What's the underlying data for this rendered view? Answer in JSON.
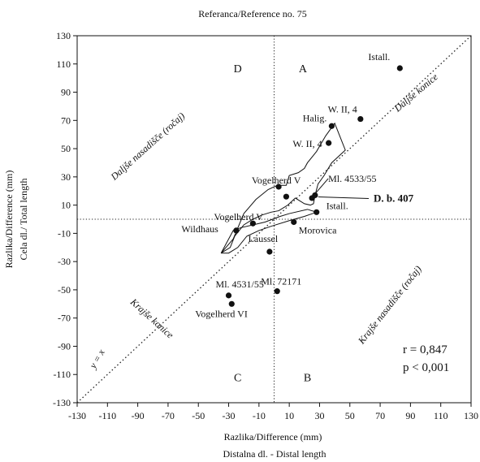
{
  "chart_data": {
    "type": "scatter",
    "title": "Referanca/Reference no. 75",
    "xlabel_1": "Razlika/Difference (mm)",
    "xlabel_2": "Distalna dl. - Distal length",
    "ylabel_1": "Razlika/Difference (mm)",
    "ylabel_2": "Cela dl./ Total  length",
    "xlim": [
      -130,
      130
    ],
    "ylim": [
      -130,
      130
    ],
    "x_ticks": [
      -130,
      -110,
      -90,
      -70,
      -50,
      -30,
      -10,
      10,
      30,
      50,
      70,
      90,
      110,
      130
    ],
    "y_ticks": [
      130,
      110,
      90,
      70,
      50,
      30,
      10,
      -10,
      -30,
      -50,
      -70,
      -90,
      -110,
      -130
    ],
    "points": [
      {
        "label": "Istall.",
        "x": 83,
        "y": 107
      },
      {
        "label": "W. II, 4",
        "x": 57,
        "y": 71
      },
      {
        "label": "Halig.",
        "x": 38,
        "y": 66
      },
      {
        "label": "W. II, 4",
        "x": 36,
        "y": 54
      },
      {
        "label": "Vogelherd V",
        "x": 3,
        "y": 23
      },
      {
        "label": "",
        "x": 8,
        "y": 16
      },
      {
        "label": "Ml. 4533/55",
        "x": 25,
        "y": 15
      },
      {
        "label": "",
        "x": 27,
        "y": 17
      },
      {
        "label": "Istall.",
        "x": 28,
        "y": 5
      },
      {
        "label": "Vogelherd V",
        "x": -14,
        "y": -3
      },
      {
        "label": "Morovica",
        "x": 13,
        "y": -2
      },
      {
        "label": "Wildhaus",
        "x": -25,
        "y": -8
      },
      {
        "label": "Laussel",
        "x": -3,
        "y": -23
      },
      {
        "label": "Ml. 4531/55",
        "x": -30,
        "y": -54
      },
      {
        "label": "Ml. 72171",
        "x": 2,
        "y": -51
      },
      {
        "label": "Vogelherd VI",
        "x": -28,
        "y": -60
      }
    ],
    "highlight_label": "D. b. 407",
    "envelope": [
      [
        -35,
        -24
      ],
      [
        -27,
        -14
      ],
      [
        -20,
        4
      ],
      [
        -12,
        14
      ],
      [
        -4,
        21
      ],
      [
        2,
        24
      ],
      [
        8,
        24
      ],
      [
        10,
        31
      ],
      [
        16,
        33
      ],
      [
        20,
        36
      ],
      [
        22,
        40
      ],
      [
        28,
        48
      ],
      [
        34,
        59
      ],
      [
        40,
        68
      ],
      [
        47,
        49
      ],
      [
        38,
        40
      ],
      [
        33,
        31
      ],
      [
        29,
        25
      ],
      [
        27,
        17
      ],
      [
        26,
        11
      ],
      [
        24,
        10
      ],
      [
        20,
        11
      ],
      [
        14,
        15
      ],
      [
        9,
        10
      ],
      [
        3,
        6
      ],
      [
        -2,
        5
      ],
      [
        -8,
        3
      ],
      [
        -14,
        0
      ],
      [
        -20,
        -4
      ],
      [
        -26,
        -12
      ],
      [
        -29,
        -20
      ],
      [
        -35,
        -24
      ]
    ],
    "envelope_2": [
      [
        -35,
        -24
      ],
      [
        -27,
        -8
      ],
      [
        -22,
        -6
      ],
      [
        -14,
        -4
      ],
      [
        -6,
        -2
      ],
      [
        4,
        2
      ],
      [
        10,
        4
      ],
      [
        22,
        7
      ],
      [
        28,
        5
      ],
      [
        20,
        2
      ],
      [
        10,
        -1
      ],
      [
        -2,
        -5
      ],
      [
        -10,
        -8
      ],
      [
        -18,
        -12
      ],
      [
        -24,
        -20
      ],
      [
        -30,
        -24
      ],
      [
        -35,
        -24
      ]
    ],
    "quadrants": {
      "A": "A",
      "B": "B",
      "C": "C",
      "D": "D"
    },
    "diagonal_labels": {
      "upper_left": "Daljše nasadišče (ročaj)",
      "upper_right": "Daljše konice",
      "lower_left": "Krajše konice",
      "lower_right": "Krajše nasadišče (ročaj)",
      "yx": "y = x"
    },
    "stats": {
      "r": "r = 0,847",
      "p": "p < 0,001"
    },
    "grid": false,
    "reference_lines": "dotted x=0, y=0 and y=x"
  }
}
